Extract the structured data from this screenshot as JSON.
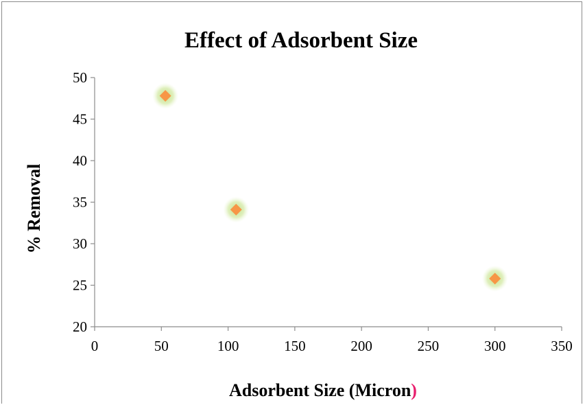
{
  "chart_data": {
    "type": "scatter",
    "title": "Effect of Adsorbent Size",
    "xlabel": "Adsorbent Size (Micron",
    "xlabel_suffix": ")",
    "ylabel": "% Removal",
    "xlim": [
      0,
      350
    ],
    "ylim": [
      20,
      50
    ],
    "xticks": [
      0,
      50,
      100,
      150,
      200,
      250,
      300,
      350
    ],
    "yticks": [
      20,
      25,
      30,
      35,
      40,
      45,
      50
    ],
    "xtick_labels": [
      "0",
      "50",
      "100",
      "150",
      "200",
      "250",
      "300",
      "350"
    ],
    "ytick_labels": [
      "20",
      "25",
      "30",
      "35",
      "40",
      "45",
      "50"
    ],
    "grid": false,
    "legend": "none",
    "series": [
      {
        "marker": "diamond",
        "color": "#f79646",
        "glow_color": "#c3e08a",
        "points": [
          {
            "x": 53,
            "y": 47.8
          },
          {
            "x": 106,
            "y": 34.1
          },
          {
            "x": 300,
            "y": 25.8
          }
        ]
      }
    ],
    "colors": {
      "axis": "#8c8c8c",
      "suffix_paren": "#e8206e"
    }
  }
}
